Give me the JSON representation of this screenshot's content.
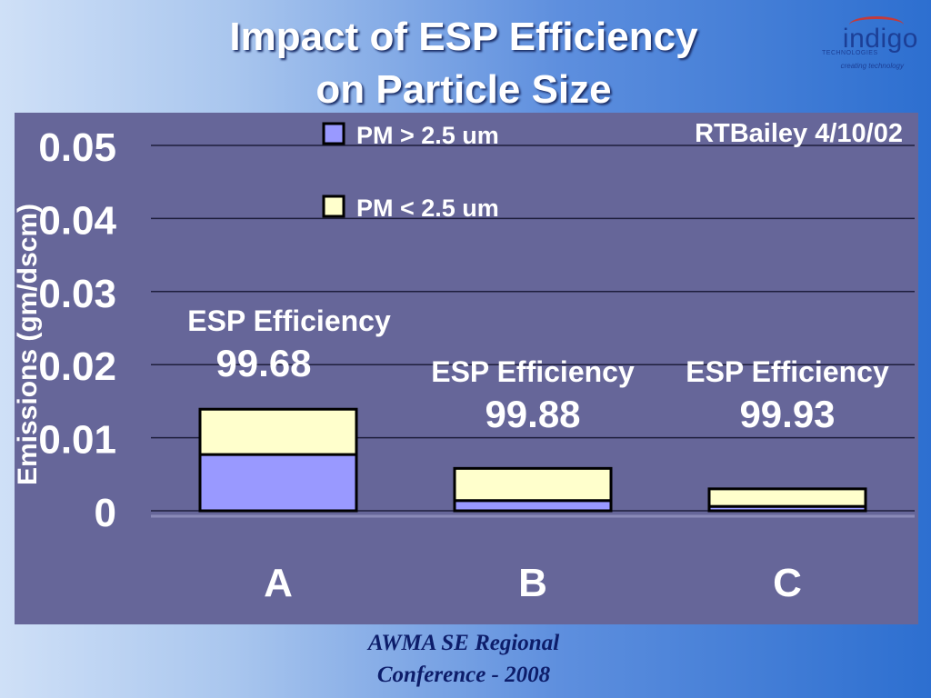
{
  "slide": {
    "title_line1": "Impact of ESP Efficiency",
    "title_line2": "on Particle Size",
    "logo_word": "indigo",
    "logo_sub": "TECHNOLOGIES",
    "logo_tag": "creating technology",
    "footer_line1": "AWMA SE Regional",
    "footer_line2": "Conference - 2008"
  },
  "chart_data": {
    "type": "bar",
    "stacked": true,
    "ylabel": "Emissions (gm/dscm)",
    "ylim": [
      0,
      0.05
    ],
    "yticks": [
      "0",
      "0.01",
      "0.02",
      "0.03",
      "0.04",
      "0.05"
    ],
    "categories": [
      "A",
      "B",
      "C"
    ],
    "series": [
      {
        "name": "PM > 2.5 um",
        "color": "#9999ff",
        "values": [
          0.0077,
          0.0014,
          0.0006
        ]
      },
      {
        "name": "PM < 2.5 um",
        "color": "#ffffcc",
        "values": [
          0.0062,
          0.0044,
          0.0024
        ]
      }
    ],
    "annotations": [
      {
        "label": "ESP Efficiency",
        "value": "99.68"
      },
      {
        "label": "ESP Efficiency",
        "value": "99.88"
      },
      {
        "label": "ESP Efficiency",
        "value": "99.93"
      }
    ],
    "credit": "RTBailey 4/10/02",
    "grid": true,
    "legend": "top-center"
  }
}
